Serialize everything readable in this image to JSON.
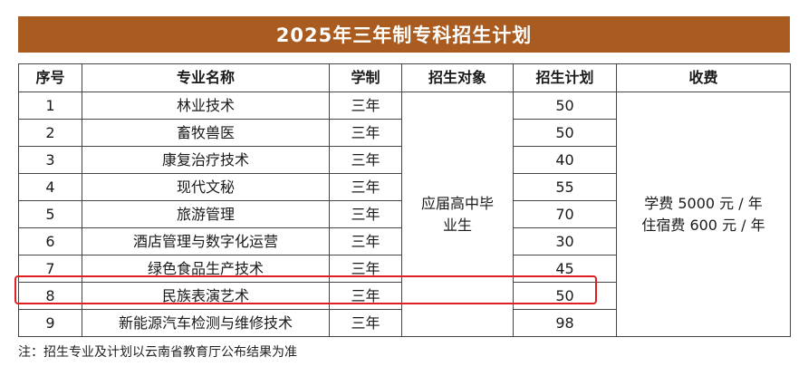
{
  "title": "2025年三年制专科招生计划",
  "headers": [
    "序号",
    "专业名称",
    "学制",
    "招生对象",
    "招生计划",
    "收费"
  ],
  "rows": [
    {
      "no": "1",
      "major": "林业技术",
      "duration": "三年",
      "quota": "50"
    },
    {
      "no": "2",
      "major": "畜牧兽医",
      "duration": "三年",
      "quota": "50"
    },
    {
      "no": "3",
      "major": "康复治疗技术",
      "duration": "三年",
      "quota": "40"
    },
    {
      "no": "4",
      "major": "现代文秘",
      "duration": "三年",
      "quota": "55"
    },
    {
      "no": "5",
      "major": "旅游管理",
      "duration": "三年",
      "quota": "70"
    },
    {
      "no": "6",
      "major": "酒店管理与数字化运营",
      "duration": "三年",
      "quota": "30"
    },
    {
      "no": "7",
      "major": "绿色食品生产技术",
      "duration": "三年",
      "quota": "45"
    },
    {
      "no": "8",
      "major": "民族表演艺术",
      "duration": "三年",
      "quota": "50"
    },
    {
      "no": "9",
      "major": "新能源汽车检测与维修技术",
      "duration": "三年",
      "quota": "98"
    }
  ],
  "target": {
    "line1": "应届高中毕",
    "line2": "业生"
  },
  "fees": {
    "tuition": "学费 5000 元 / 年",
    "lodging": "住宿费 600 元 / 年"
  },
  "highlighted_row": "8",
  "colors": {
    "banner": "#a95b20",
    "highlight": "#e02020",
    "border": "#444444"
  },
  "note": "注：招生专业及计划以云南省教育厅公布结果为准"
}
